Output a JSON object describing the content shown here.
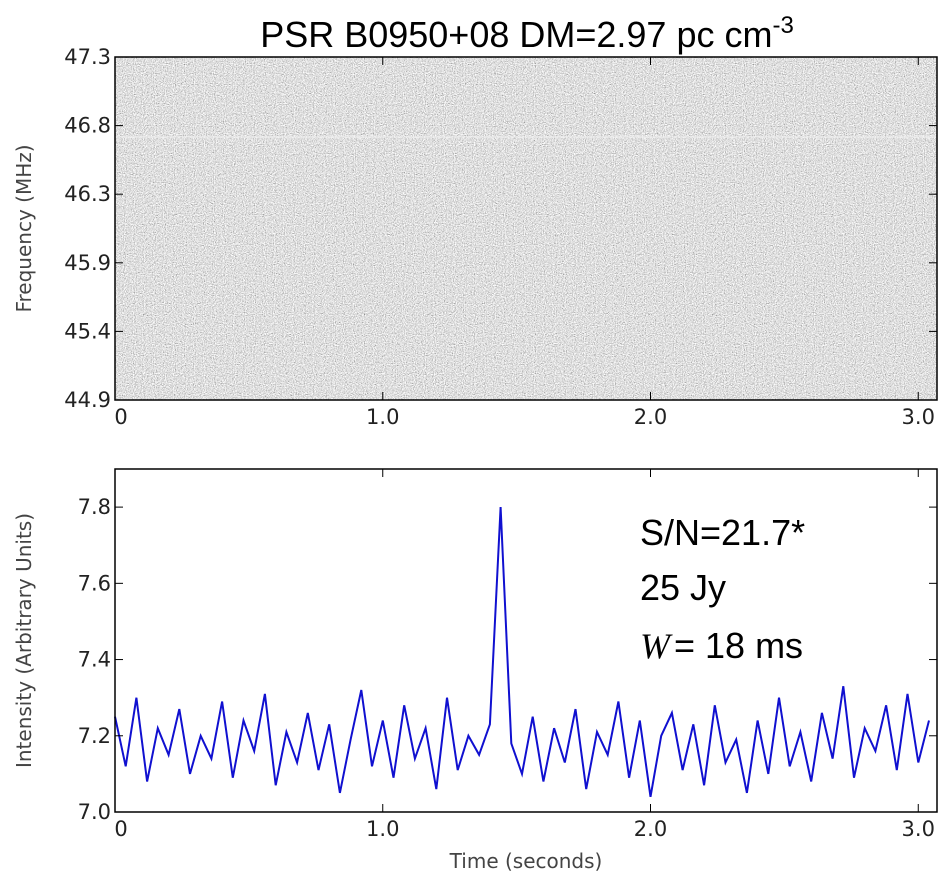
{
  "chart_data": [
    {
      "type": "spectrogram",
      "title": "PSR B0950+08   DM=2.97 pc cm",
      "title_superscript": "-3",
      "y_label": "Frequency (MHz)",
      "xlim": [
        0,
        3.07
      ],
      "xticks": [
        0,
        {
          "value": 1,
          "label": "1.0"
        },
        {
          "value": 2,
          "label": "2.0"
        },
        {
          "value": 3,
          "label": "3.0"
        }
      ],
      "ylim": [
        44.9,
        47.3
      ],
      "yticks": [
        44.9,
        {
          "value": 45.38,
          "label": "45.4"
        },
        {
          "value": 45.86,
          "label": "45.9"
        },
        {
          "value": 46.34,
          "label": "46.3"
        },
        {
          "value": 46.82,
          "label": "46.8"
        },
        47.3
      ]
    },
    {
      "type": "line",
      "x_label": "Time (seconds)",
      "y_label": "Intensity (Arbitrary Units)",
      "annotations": [
        "S/N=21.7*",
        "25 Jy"
      ],
      "annotation_width": {
        "symbol": "W",
        "text": "= 18 ms"
      },
      "xlim": [
        0,
        3.07
      ],
      "xticks": [
        0,
        {
          "value": 1,
          "label": "1.0"
        },
        {
          "value": 2,
          "label": "2.0"
        },
        {
          "value": 3,
          "label": "3.0"
        }
      ],
      "ylim": [
        7.0,
        7.9
      ],
      "yticks": [
        {
          "value": 7,
          "label": "7.0"
        },
        7.2,
        7.4,
        7.6,
        7.8
      ],
      "x": [
        0,
        0.04,
        0.08,
        0.12,
        0.16,
        0.2,
        0.24,
        0.28,
        0.32,
        0.36,
        0.4,
        0.44,
        0.48,
        0.52,
        0.56,
        0.6,
        0.64,
        0.68,
        0.72,
        0.76,
        0.8,
        0.84,
        0.88,
        0.92,
        0.96,
        1.0,
        1.04,
        1.08,
        1.12,
        1.16,
        1.2,
        1.24,
        1.28,
        1.32,
        1.36,
        1.4,
        1.44,
        1.48,
        1.52,
        1.56,
        1.6,
        1.64,
        1.68,
        1.72,
        1.76,
        1.8,
        1.84,
        1.88,
        1.92,
        1.96,
        2.0,
        2.04,
        2.08,
        2.12,
        2.16,
        2.2,
        2.24,
        2.28,
        2.32,
        2.36,
        2.4,
        2.44,
        2.48,
        2.52,
        2.56,
        2.6,
        2.64,
        2.68,
        2.72,
        2.76,
        2.8,
        2.84,
        2.88,
        2.92,
        2.96,
        3.0,
        3.04
      ],
      "series": [
        {
          "color": "#1010d0",
          "values": [
            7.25,
            7.12,
            7.3,
            7.08,
            7.22,
            7.15,
            7.27,
            7.1,
            7.2,
            7.14,
            7.29,
            7.09,
            7.24,
            7.16,
            7.31,
            7.07,
            7.21,
            7.13,
            7.26,
            7.11,
            7.23,
            7.05,
            7.19,
            7.32,
            7.12,
            7.24,
            7.09,
            7.28,
            7.14,
            7.22,
            7.06,
            7.3,
            7.11,
            7.2,
            7.15,
            7.23,
            7.8,
            7.18,
            7.1,
            7.25,
            7.08,
            7.22,
            7.13,
            7.27,
            7.06,
            7.21,
            7.15,
            7.29,
            7.09,
            7.24,
            7.04,
            7.2,
            7.26,
            7.11,
            7.23,
            7.07,
            7.28,
            7.13,
            7.19,
            7.05,
            7.24,
            7.1,
            7.3,
            7.12,
            7.21,
            7.08,
            7.26,
            7.14,
            7.33,
            7.09,
            7.22,
            7.16,
            7.28,
            7.11,
            7.31,
            7.13,
            7.24
          ]
        }
      ]
    }
  ]
}
